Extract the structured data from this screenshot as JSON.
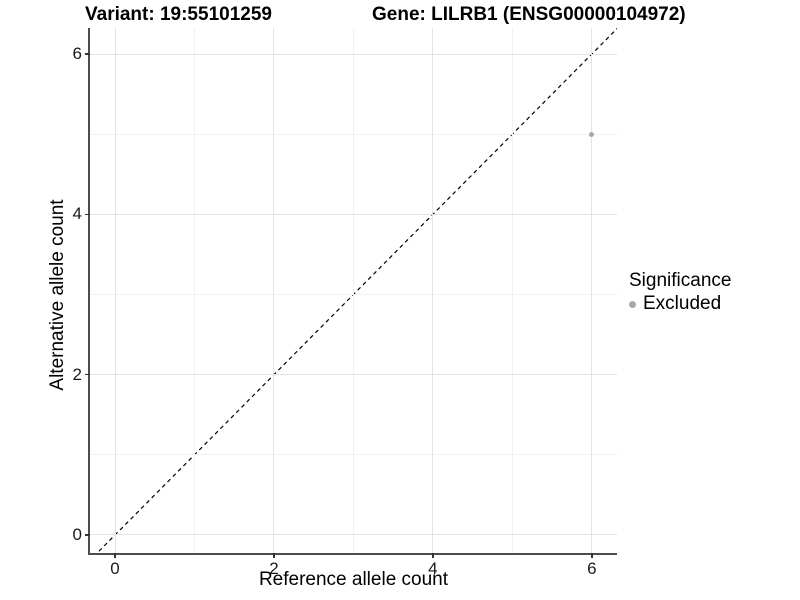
{
  "titles": {
    "left": "Variant: 19:55101259",
    "right": "Gene: LILRB1 (ENSG00000104972)"
  },
  "axes": {
    "x": {
      "label": "Reference allele count",
      "range": [
        -0.315,
        6.317
      ],
      "major_values": [
        0,
        2,
        4,
        6
      ],
      "tick_labels": [
        "0",
        "2",
        "4",
        "6"
      ],
      "minor_values": [
        1,
        3,
        5
      ]
    },
    "y": {
      "label": "Alternative allele count",
      "range": [
        -0.225,
        6.325
      ],
      "major_values": [
        0,
        2,
        4,
        6
      ],
      "tick_labels": [
        "0",
        "2",
        "4",
        "6"
      ],
      "minor_values": [
        1,
        3,
        5
      ]
    }
  },
  "legend": {
    "title": "Significance",
    "items": [
      {
        "label": "Excluded",
        "color": "#a8a8a8"
      }
    ]
  },
  "chart_data": {
    "type": "scatter",
    "title": "Variant: 19:55101259    Gene: LILRB1 (ENSG00000104972)",
    "xlabel": "Reference allele count",
    "ylabel": "Alternative allele count",
    "xlim": [
      -0.315,
      6.317
    ],
    "ylim": [
      -0.225,
      6.325
    ],
    "grid": "major gridlines at 0,2,4,6; minor gridlines at 1,3,5; white background",
    "legend_position": "right",
    "series": [
      {
        "name": "Excluded",
        "color": "#a8a8a8",
        "points": [
          {
            "x": 6,
            "y": 5
          }
        ]
      }
    ],
    "reference_line": {
      "equation": "y = x",
      "style": "dashed",
      "color": "#000000"
    }
  },
  "colors": {
    "background": "#ffffff",
    "grid_major": "#e3e3e3",
    "grid_minor": "#f1f1f1",
    "axis_line": "#4d4d4d",
    "point": "#a8a8a8",
    "reference_line": "#000000",
    "text": "#000000"
  }
}
